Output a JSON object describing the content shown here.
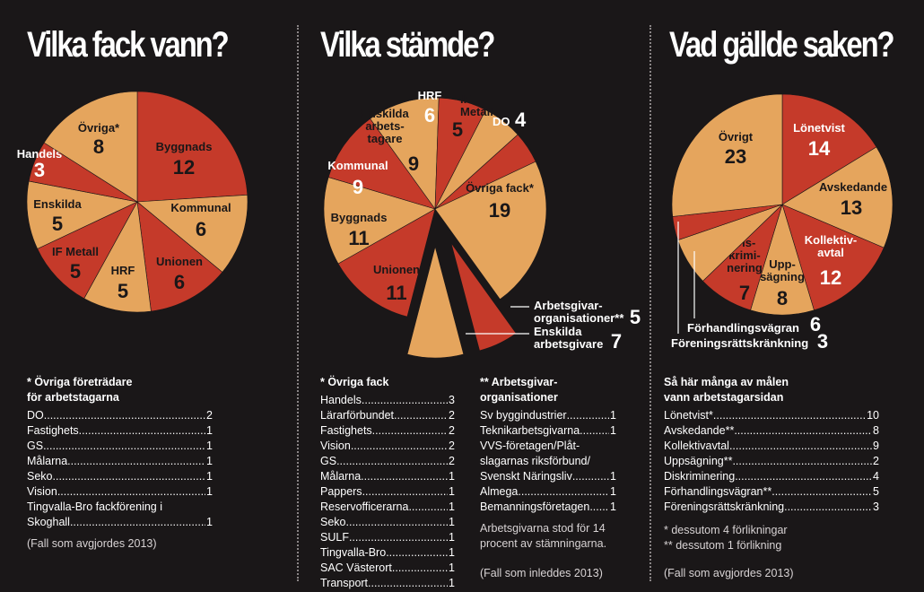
{
  "colors": {
    "red": "#c53a2a",
    "tan": "#e5a55d",
    "bg": "#1a1718"
  },
  "chart_data": [
    {
      "type": "pie",
      "title": "Vilka fack vann?",
      "slices": [
        {
          "label": "Byggnads",
          "value": 12,
          "color": "red"
        },
        {
          "label": "Kommunal",
          "value": 6,
          "color": "tan"
        },
        {
          "label": "Unionen",
          "value": 6,
          "color": "red"
        },
        {
          "label": "HRF",
          "value": 5,
          "color": "tan"
        },
        {
          "label": "IF Metall",
          "value": 5,
          "color": "red"
        },
        {
          "label": "Enskilda",
          "value": 5,
          "color": "tan"
        },
        {
          "label": "Handels",
          "value": 3,
          "color": "red"
        },
        {
          "label": "Övriga*",
          "value": 8,
          "color": "tan"
        }
      ]
    },
    {
      "type": "pie",
      "title": "Vilka stämde?",
      "slices": [
        {
          "label": "DO",
          "value": 4,
          "color": "red"
        },
        {
          "label": "Övriga fack*",
          "value": 19,
          "color": "tan"
        },
        {
          "label": "Arbetsgivar- organisationer**",
          "value": 5,
          "color": "red",
          "exploded": true
        },
        {
          "label": "Enskilda arbetsgivare",
          "value": 7,
          "color": "tan",
          "exploded": true
        },
        {
          "label": "Unionen",
          "value": 11,
          "color": "red"
        },
        {
          "label": "Byggnads",
          "value": 11,
          "color": "tan"
        },
        {
          "label": "Kommunal",
          "value": 9,
          "color": "red"
        },
        {
          "label": "Enskilda arbets- tagare",
          "value": 9,
          "color": "tan"
        },
        {
          "label": "HRF",
          "value": 6,
          "color": "red"
        },
        {
          "label": "IF Metall",
          "value": 5,
          "color": "tan"
        }
      ]
    },
    {
      "type": "pie",
      "title": "Vad gällde saken?",
      "slices": [
        {
          "label": "Lönetvist",
          "value": 14,
          "color": "red"
        },
        {
          "label": "Avskedande",
          "value": 13,
          "color": "tan"
        },
        {
          "label": "Kollektiv- avtal",
          "value": 12,
          "color": "red"
        },
        {
          "label": "Upp- sägning",
          "value": 8,
          "color": "tan"
        },
        {
          "label": "Dis- krimi- nering",
          "value": 7,
          "color": "red"
        },
        {
          "label": "Förhandlingsvägran",
          "value": 6,
          "color": "tan"
        },
        {
          "label": "Föreningsrättskränkning",
          "value": 3,
          "color": "red"
        },
        {
          "label": "Övrigt",
          "value": 23,
          "color": "tan"
        }
      ]
    }
  ],
  "lists": {
    "p1": {
      "heading1": "* Övriga företrädare",
      "heading2": "för arbetstagarna",
      "rows": [
        {
          "name": "DO",
          "value": "2"
        },
        {
          "name": "Fastighets",
          "value": "1"
        },
        {
          "name": "GS",
          "value": "1"
        },
        {
          "name": "Målarna",
          "value": "1"
        },
        {
          "name": "Seko",
          "value": "1"
        },
        {
          "name": "Vision",
          "value": "1"
        }
      ],
      "last_line1": "Tingvalla-Bro fackförening i",
      "last_name": "Skoghall",
      "last_value": "1",
      "note": "(Fall som avgjordes 2013)"
    },
    "p2a": {
      "heading1": "* Övriga fack",
      "rows": [
        {
          "name": "Handels",
          "value": "3"
        },
        {
          "name": "Lärarförbundet",
          "value": "2"
        },
        {
          "name": "Fastighets",
          "value": "2"
        },
        {
          "name": "Vision",
          "value": "2"
        },
        {
          "name": "GS",
          "value": "2"
        },
        {
          "name": "Målarna",
          "value": "1"
        },
        {
          "name": "Pappers",
          "value": "1"
        },
        {
          "name": "Reservofficerarna",
          "value": "1"
        },
        {
          "name": "Seko",
          "value": "1"
        },
        {
          "name": "SULF",
          "value": "1"
        },
        {
          "name": "Tingvalla-Bro",
          "value": "1"
        },
        {
          "name": "SAC Västerort",
          "value": "1"
        },
        {
          "name": "Transport",
          "value": "1"
        }
      ]
    },
    "p2b": {
      "heading1": "** Arbetsgivar-",
      "heading2": "organisationer",
      "rows": [
        {
          "name": "Sv byggindustrier",
          "value": "1"
        },
        {
          "name": "Teknikarbetsgivarna",
          "value": "1"
        }
      ],
      "multi1": "VVS-företagen/Plåt-",
      "multi2": "slagarnas riksförbund/",
      "multi_name": "Svenskt Näringsliv",
      "multi_value": "1",
      "rows2": [
        {
          "name": "Almega",
          "value": "1"
        },
        {
          "name": "Bemanningsföretagen",
          "value": "1"
        }
      ],
      "note1": "Arbetsgivarna stod för 14",
      "note2": "procent av stämningarna.",
      "note3": "(Fall som inleddes 2013)"
    },
    "p3": {
      "heading1": "Så här många av målen",
      "heading2": "vann arbetstagarsidan",
      "rows": [
        {
          "name": "Lönetvist*",
          "value": "10"
        },
        {
          "name": "Avskedande**",
          "value": "8"
        },
        {
          "name": "Kollektivavtal",
          "value": "9"
        },
        {
          "name": "Uppsägning**",
          "value": "2"
        },
        {
          "name": "Diskriminering",
          "value": "4"
        },
        {
          "name": "Förhandlingsvägran**",
          "value": "5"
        },
        {
          "name": "Föreningsrättskränkning",
          "value": "3"
        }
      ],
      "foot1": "* dessutom 4 förlikningar",
      "foot2": "** dessutom 1 förlikning",
      "note": "(Fall som avgjordes 2013)"
    }
  }
}
